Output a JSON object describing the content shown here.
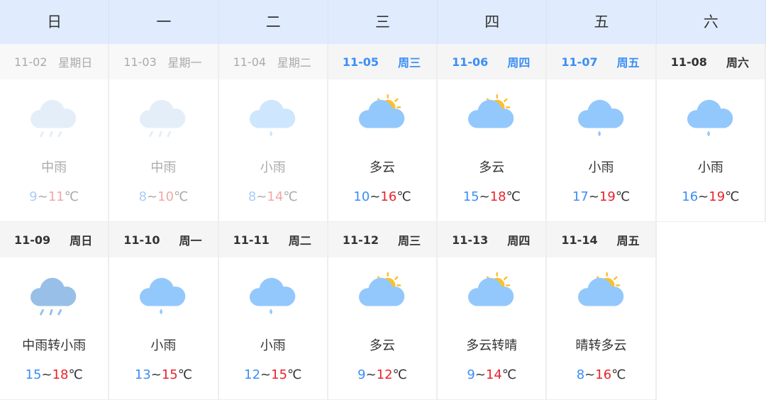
{
  "weekdays": [
    "日",
    "一",
    "二",
    "三",
    "四",
    "五",
    "六"
  ],
  "colors": {
    "low": "#3a8ef6",
    "high": "#e8232b",
    "current": "#3a8ef6",
    "header_bg": "#e0ecfd"
  },
  "unit": "℃",
  "rows": [
    [
      {
        "date": "11-02",
        "day": "星期日",
        "icon": "moderate-rain-icon",
        "cond": "中雨",
        "low": "9",
        "high": "11",
        "state": "past"
      },
      {
        "date": "11-03",
        "day": "星期一",
        "icon": "moderate-rain-icon",
        "cond": "中雨",
        "low": "8",
        "high": "10",
        "state": "past"
      },
      {
        "date": "11-04",
        "day": "星期二",
        "icon": "light-rain-icon",
        "cond": "小雨",
        "low": "8",
        "high": "14",
        "state": "past"
      },
      {
        "date": "11-05",
        "day": "周三",
        "icon": "partly-cloudy-icon",
        "cond": "多云",
        "low": "10",
        "high": "16",
        "state": "cur"
      },
      {
        "date": "11-06",
        "day": "周四",
        "icon": "partly-cloudy-icon",
        "cond": "多云",
        "low": "15",
        "high": "18",
        "state": "cur"
      },
      {
        "date": "11-07",
        "day": "周五",
        "icon": "light-rain-icon",
        "cond": "小雨",
        "low": "17",
        "high": "19",
        "state": "cur"
      },
      {
        "date": "11-08",
        "day": "周六",
        "icon": "light-rain-icon",
        "cond": "小雨",
        "low": "16",
        "high": "19",
        "state": ""
      }
    ],
    [
      {
        "date": "11-09",
        "day": "周日",
        "icon": "moderate-rain-dark-icon",
        "cond": "中雨转小雨",
        "low": "15",
        "high": "18",
        "state": ""
      },
      {
        "date": "11-10",
        "day": "周一",
        "icon": "light-rain-icon",
        "cond": "小雨",
        "low": "13",
        "high": "15",
        "state": ""
      },
      {
        "date": "11-11",
        "day": "周二",
        "icon": "light-rain-icon",
        "cond": "小雨",
        "low": "12",
        "high": "15",
        "state": ""
      },
      {
        "date": "11-12",
        "day": "周三",
        "icon": "partly-cloudy-icon",
        "cond": "多云",
        "low": "9",
        "high": "12",
        "state": ""
      },
      {
        "date": "11-13",
        "day": "周四",
        "icon": "partly-cloudy-icon",
        "cond": "多云转晴",
        "low": "9",
        "high": "14",
        "state": ""
      },
      {
        "date": "11-14",
        "day": "周五",
        "icon": "partly-cloudy-icon",
        "cond": "晴转多云",
        "low": "8",
        "high": "16",
        "state": ""
      }
    ]
  ]
}
